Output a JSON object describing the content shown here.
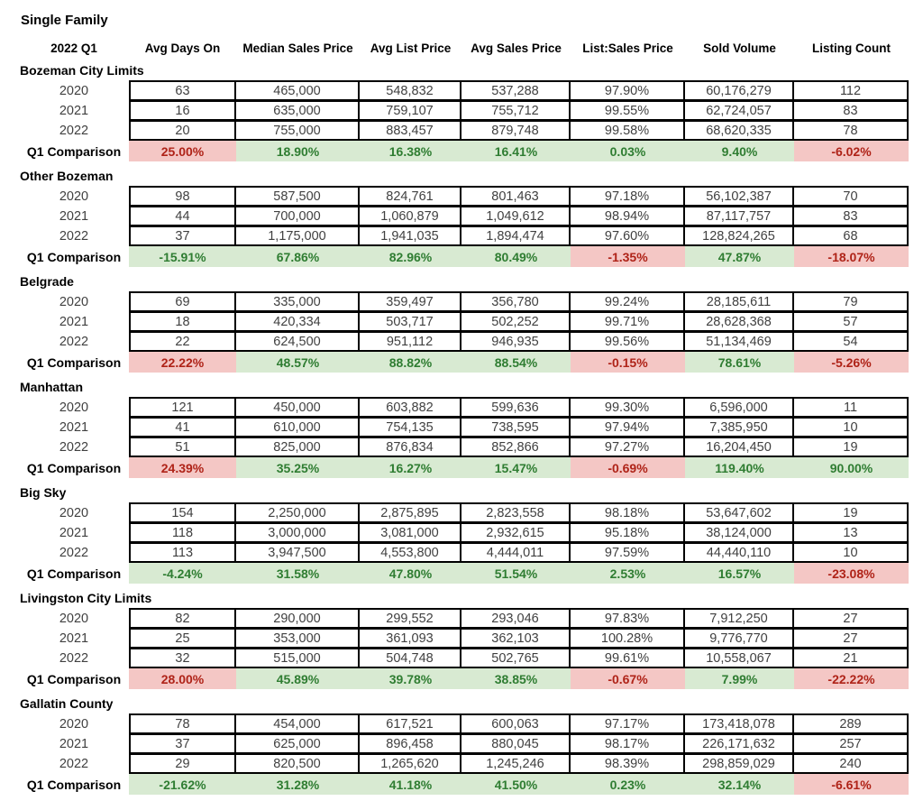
{
  "chart_data": {
    "type": "table",
    "title": "Single Family",
    "subtitle": "2022 Q1",
    "comparison_label": "Q1 Comparison",
    "columns": [
      "Avg Days On",
      "Median Sales Price",
      "Avg List Price",
      "Avg Sales Price",
      "List:Sales Price",
      "Sold Volume",
      "Listing Count"
    ],
    "colors": {
      "good_bg": "#d8ead2",
      "good_text": "#2f7d32",
      "bad_bg": "#f4c7c5",
      "bad_text": "#af2318",
      "border": "#000000",
      "value_text": "#404040"
    },
    "sections": [
      {
        "name": "Bozeman City Limits",
        "rows": [
          {
            "year": "2020",
            "values": [
              "63",
              "465,000",
              "548,832",
              "537,288",
              "97.90%",
              "60,176,279",
              "112"
            ]
          },
          {
            "year": "2021",
            "values": [
              "16",
              "635,000",
              "759,107",
              "755,712",
              "99.55%",
              "62,724,057",
              "83"
            ]
          },
          {
            "year": "2022",
            "values": [
              "20",
              "755,000",
              "883,457",
              "879,748",
              "99.58%",
              "68,620,335",
              "78"
            ]
          }
        ],
        "comparison": [
          {
            "value": "25.00%",
            "status": "bad"
          },
          {
            "value": "18.90%",
            "status": "good"
          },
          {
            "value": "16.38%",
            "status": "good"
          },
          {
            "value": "16.41%",
            "status": "good"
          },
          {
            "value": "0.03%",
            "status": "good"
          },
          {
            "value": "9.40%",
            "status": "good"
          },
          {
            "value": "-6.02%",
            "status": "bad"
          }
        ]
      },
      {
        "name": "Other Bozeman",
        "rows": [
          {
            "year": "2020",
            "values": [
              "98",
              "587,500",
              "824,761",
              "801,463",
              "97.18%",
              "56,102,387",
              "70"
            ]
          },
          {
            "year": "2021",
            "values": [
              "44",
              "700,000",
              "1,060,879",
              "1,049,612",
              "98.94%",
              "87,117,757",
              "83"
            ]
          },
          {
            "year": "2022",
            "values": [
              "37",
              "1,175,000",
              "1,941,035",
              "1,894,474",
              "97.60%",
              "128,824,265",
              "68"
            ]
          }
        ],
        "comparison": [
          {
            "value": "-15.91%",
            "status": "good"
          },
          {
            "value": "67.86%",
            "status": "good"
          },
          {
            "value": "82.96%",
            "status": "good"
          },
          {
            "value": "80.49%",
            "status": "good"
          },
          {
            "value": "-1.35%",
            "status": "bad"
          },
          {
            "value": "47.87%",
            "status": "good"
          },
          {
            "value": "-18.07%",
            "status": "bad"
          }
        ]
      },
      {
        "name": "Belgrade",
        "rows": [
          {
            "year": "2020",
            "values": [
              "69",
              "335,000",
              "359,497",
              "356,780",
              "99.24%",
              "28,185,611",
              "79"
            ]
          },
          {
            "year": "2021",
            "values": [
              "18",
              "420,334",
              "503,717",
              "502,252",
              "99.71%",
              "28,628,368",
              "57"
            ]
          },
          {
            "year": "2022",
            "values": [
              "22",
              "624,500",
              "951,112",
              "946,935",
              "99.56%",
              "51,134,469",
              "54"
            ]
          }
        ],
        "comparison": [
          {
            "value": "22.22%",
            "status": "bad"
          },
          {
            "value": "48.57%",
            "status": "good"
          },
          {
            "value": "88.82%",
            "status": "good"
          },
          {
            "value": "88.54%",
            "status": "good"
          },
          {
            "value": "-0.15%",
            "status": "bad"
          },
          {
            "value": "78.61%",
            "status": "good"
          },
          {
            "value": "-5.26%",
            "status": "bad"
          }
        ]
      },
      {
        "name": "Manhattan",
        "rows": [
          {
            "year": "2020",
            "values": [
              "121",
              "450,000",
              "603,882",
              "599,636",
              "99.30%",
              "6,596,000",
              "11"
            ]
          },
          {
            "year": "2021",
            "values": [
              "41",
              "610,000",
              "754,135",
              "738,595",
              "97.94%",
              "7,385,950",
              "10"
            ]
          },
          {
            "year": "2022",
            "values": [
              "51",
              "825,000",
              "876,834",
              "852,866",
              "97.27%",
              "16,204,450",
              "19"
            ]
          }
        ],
        "comparison": [
          {
            "value": "24.39%",
            "status": "bad"
          },
          {
            "value": "35.25%",
            "status": "good"
          },
          {
            "value": "16.27%",
            "status": "good"
          },
          {
            "value": "15.47%",
            "status": "good"
          },
          {
            "value": "-0.69%",
            "status": "bad"
          },
          {
            "value": "119.40%",
            "status": "good"
          },
          {
            "value": "90.00%",
            "status": "good"
          }
        ]
      },
      {
        "name": "Big Sky",
        "rows": [
          {
            "year": "2020",
            "values": [
              "154",
              "2,250,000",
              "2,875,895",
              "2,823,558",
              "98.18%",
              "53,647,602",
              "19"
            ]
          },
          {
            "year": "2021",
            "values": [
              "118",
              "3,000,000",
              "3,081,000",
              "2,932,615",
              "95.18%",
              "38,124,000",
              "13"
            ]
          },
          {
            "year": "2022",
            "values": [
              "113",
              "3,947,500",
              "4,553,800",
              "4,444,011",
              "97.59%",
              "44,440,110",
              "10"
            ]
          }
        ],
        "comparison": [
          {
            "value": "-4.24%",
            "status": "good"
          },
          {
            "value": "31.58%",
            "status": "good"
          },
          {
            "value": "47.80%",
            "status": "good"
          },
          {
            "value": "51.54%",
            "status": "good"
          },
          {
            "value": "2.53%",
            "status": "good"
          },
          {
            "value": "16.57%",
            "status": "good"
          },
          {
            "value": "-23.08%",
            "status": "bad"
          }
        ]
      },
      {
        "name": "Livingston City Limits",
        "rows": [
          {
            "year": "2020",
            "values": [
              "82",
              "290,000",
              "299,552",
              "293,046",
              "97.83%",
              "7,912,250",
              "27"
            ]
          },
          {
            "year": "2021",
            "values": [
              "25",
              "353,000",
              "361,093",
              "362,103",
              "100.28%",
              "9,776,770",
              "27"
            ]
          },
          {
            "year": "2022",
            "values": [
              "32",
              "515,000",
              "504,748",
              "502,765",
              "99.61%",
              "10,558,067",
              "21"
            ]
          }
        ],
        "comparison": [
          {
            "value": "28.00%",
            "status": "bad"
          },
          {
            "value": "45.89%",
            "status": "good"
          },
          {
            "value": "39.78%",
            "status": "good"
          },
          {
            "value": "38.85%",
            "status": "good"
          },
          {
            "value": "-0.67%",
            "status": "bad"
          },
          {
            "value": "7.99%",
            "status": "good"
          },
          {
            "value": "-22.22%",
            "status": "bad"
          }
        ]
      },
      {
        "name": "Gallatin County",
        "rows": [
          {
            "year": "2020",
            "values": [
              "78",
              "454,000",
              "617,521",
              "600,063",
              "97.17%",
              "173,418,078",
              "289"
            ]
          },
          {
            "year": "2021",
            "values": [
              "37",
              "625,000",
              "896,458",
              "880,045",
              "98.17%",
              "226,171,632",
              "257"
            ]
          },
          {
            "year": "2022",
            "values": [
              "29",
              "820,500",
              "1,265,620",
              "1,245,246",
              "98.39%",
              "298,859,029",
              "240"
            ]
          }
        ],
        "comparison": [
          {
            "value": "-21.62%",
            "status": "good"
          },
          {
            "value": "31.28%",
            "status": "good"
          },
          {
            "value": "41.18%",
            "status": "good"
          },
          {
            "value": "41.50%",
            "status": "good"
          },
          {
            "value": "0.23%",
            "status": "good"
          },
          {
            "value": "32.14%",
            "status": "good"
          },
          {
            "value": "-6.61%",
            "status": "bad"
          }
        ]
      }
    ]
  }
}
